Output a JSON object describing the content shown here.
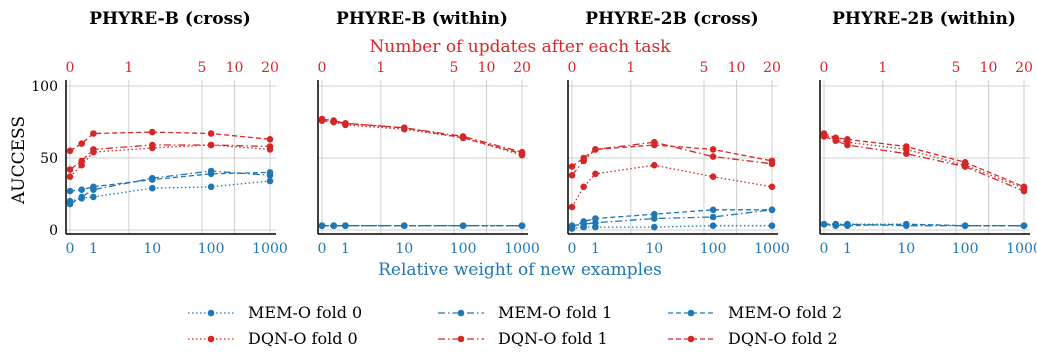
{
  "figure": {
    "top_axis_label": "Number of updates after each task",
    "bottom_axis_label": "Relative weight of new examples",
    "ylabel": "AUCCESS",
    "colors": {
      "mem": "#1f77b4",
      "dqn": "#d62728"
    }
  },
  "chart_data": [
    {
      "type": "line",
      "title": "PHYRE-B (cross)",
      "x": [
        0,
        0.5,
        1,
        10,
        100,
        1000
      ],
      "top_ticks": [
        "0",
        "1",
        "5",
        "10",
        "20"
      ],
      "ylim": [
        0,
        100
      ],
      "series": [
        {
          "name": "MEM-O fold 0",
          "values": [
            20,
            22,
            23,
            29,
            30,
            34
          ]
        },
        {
          "name": "MEM-O fold 1",
          "values": [
            18,
            23,
            28,
            36,
            41,
            38
          ]
        },
        {
          "name": "MEM-O fold 2",
          "values": [
            27,
            28,
            30,
            35,
            39,
            40
          ]
        },
        {
          "name": "DQN-O fold 0",
          "values": [
            37,
            45,
            54,
            57,
            59,
            56
          ]
        },
        {
          "name": "DQN-O fold 1",
          "values": [
            42,
            48,
            56,
            59,
            59,
            58
          ]
        },
        {
          "name": "DQN-O fold 2",
          "values": [
            55,
            60,
            67,
            68,
            67,
            63
          ]
        }
      ]
    },
    {
      "type": "line",
      "title": "PHYRE-B (within)",
      "x": [
        0,
        0.5,
        1,
        10,
        100,
        1000
      ],
      "top_ticks": [
        "0",
        "1",
        "5",
        "10",
        "20"
      ],
      "ylim": [
        0,
        100
      ],
      "series": [
        {
          "name": "MEM-O fold 0",
          "values": [
            3,
            3,
            3,
            3,
            3,
            3
          ]
        },
        {
          "name": "MEM-O fold 1",
          "values": [
            3,
            3,
            3,
            3,
            3,
            3
          ]
        },
        {
          "name": "MEM-O fold 2",
          "values": [
            3,
            3,
            3,
            3,
            3,
            3
          ]
        },
        {
          "name": "DQN-O fold 0",
          "values": [
            76,
            75,
            73,
            70,
            64,
            52
          ]
        },
        {
          "name": "DQN-O fold 1",
          "values": [
            77,
            76,
            74,
            71,
            65,
            54
          ]
        },
        {
          "name": "DQN-O fold 2",
          "values": [
            76,
            75,
            74,
            71,
            64,
            53
          ]
        }
      ]
    },
    {
      "type": "line",
      "title": "PHYRE-2B (cross)",
      "x": [
        0,
        0.5,
        1,
        10,
        100,
        1000
      ],
      "top_ticks": [
        "0",
        "1",
        "5",
        "10",
        "20"
      ],
      "ylim": [
        0,
        100
      ],
      "series": [
        {
          "name": "MEM-O fold 0",
          "values": [
            1,
            2,
            2,
            2,
            3,
            3
          ]
        },
        {
          "name": "MEM-O fold 1",
          "values": [
            3,
            4,
            5,
            8,
            9,
            14
          ]
        },
        {
          "name": "MEM-O fold 2",
          "values": [
            2,
            6,
            8,
            11,
            14,
            14
          ]
        },
        {
          "name": "DQN-O fold 0",
          "values": [
            16,
            30,
            39,
            45,
            37,
            30
          ]
        },
        {
          "name": "DQN-O fold 1",
          "values": [
            38,
            48,
            56,
            61,
            51,
            46
          ]
        },
        {
          "name": "DQN-O fold 2",
          "values": [
            44,
            50,
            56,
            59,
            56,
            48
          ]
        }
      ]
    },
    {
      "type": "line",
      "title": "PHYRE-2B (within)",
      "x": [
        0,
        0.5,
        1,
        10,
        100,
        1000
      ],
      "top_ticks": [
        "0",
        "1",
        "5",
        "10",
        "20"
      ],
      "ylim": [
        0,
        100
      ],
      "series": [
        {
          "name": "MEM-O fold 0",
          "values": [
            4,
            4,
            4,
            4,
            3,
            3
          ]
        },
        {
          "name": "MEM-O fold 1",
          "values": [
            4,
            3,
            4,
            3,
            3,
            3
          ]
        },
        {
          "name": "MEM-O fold 2",
          "values": [
            4,
            4,
            3,
            4,
            3,
            3
          ]
        },
        {
          "name": "DQN-O fold 0",
          "values": [
            66,
            63,
            61,
            56,
            45,
            29
          ]
        },
        {
          "name": "DQN-O fold 1",
          "values": [
            65,
            62,
            59,
            53,
            44,
            27
          ]
        },
        {
          "name": "DQN-O fold 2",
          "values": [
            67,
            64,
            63,
            58,
            47,
            30
          ]
        }
      ]
    }
  ],
  "y_ticks": [
    "0",
    "50",
    "100"
  ],
  "x_ticks": [
    "0",
    "1",
    "10",
    "100",
    "1000"
  ],
  "legend": {
    "placement": "bottom",
    "entries": [
      "MEM-O fold 0",
      "MEM-O fold 1",
      "MEM-O fold 2",
      "DQN-O fold 0",
      "DQN-O fold 1",
      "DQN-O fold 2"
    ]
  }
}
